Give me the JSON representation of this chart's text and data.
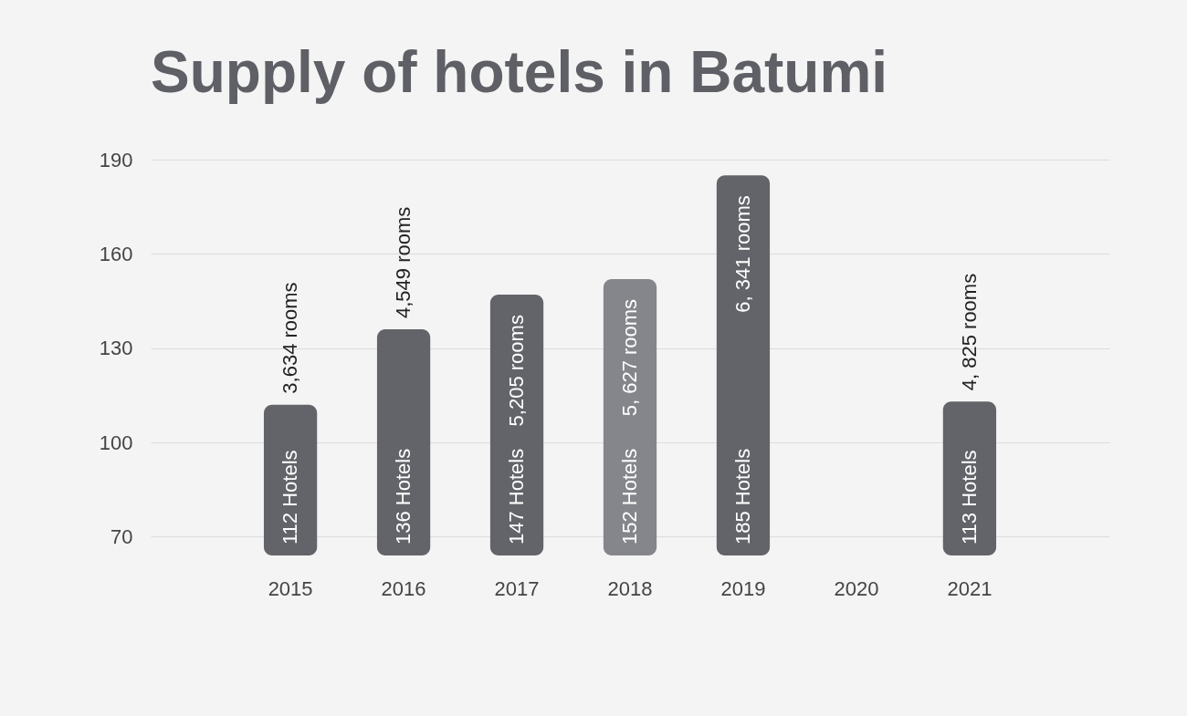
{
  "chart_data": {
    "type": "bar",
    "title": "Supply of hotels in Batumi",
    "categories": [
      "2015",
      "2016",
      "2017",
      "2018",
      "2019",
      "2020",
      "2021"
    ],
    "colors": [
      "#63646a",
      "#63646a",
      "#63646a",
      "#85868b",
      "#63646a",
      null,
      "#63646a"
    ],
    "values": [
      112,
      136,
      147,
      152,
      185,
      null,
      113
    ],
    "value_labels": [
      "112 Hotels",
      "136 Hotels",
      "147 Hotels",
      "152 Hotels",
      "185 Hotels",
      null,
      "113  Hotels"
    ],
    "annotations": [
      {
        "text": "3,634 rooms",
        "x": "2015",
        "y": 112
      },
      {
        "text": "4,549 rooms",
        "x": "2016",
        "y": 136
      },
      {
        "text": "5,205 rooms",
        "x": "2017",
        "y": 147
      },
      {
        "text": "5, 627 rooms",
        "x": "2018",
        "y": 152
      },
      {
        "text": "6, 341 rooms",
        "x": "2019",
        "y": 185
      },
      {
        "text": "4, 825 rooms",
        "x": "2021",
        "y": 113
      }
    ],
    "ylim": [
      64,
      190
    ],
    "yticks": [
      70,
      100,
      130,
      160,
      190
    ],
    "grid": "y"
  }
}
